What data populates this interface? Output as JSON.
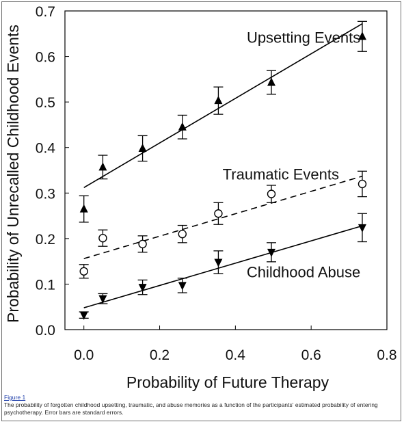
{
  "chart_data": {
    "type": "scatter",
    "xlabel": "Probability of Future Therapy",
    "ylabel": "Probability of Unrecalled Childhood Events",
    "xlim": [
      -0.05,
      0.8
    ],
    "ylim": [
      0.0,
      0.7
    ],
    "xticks": [
      "0.0",
      "0.2",
      "0.4",
      "0.6",
      "0.8"
    ],
    "xtick_values": [
      0.0,
      0.2,
      0.4,
      0.6,
      0.8
    ],
    "yticks": [
      "0.0",
      "0.1",
      "0.2",
      "0.3",
      "0.4",
      "0.5",
      "0.6",
      "0.7"
    ],
    "ytick_values": [
      0.0,
      0.1,
      0.2,
      0.3,
      0.4,
      0.5,
      0.6,
      0.7
    ],
    "series": [
      {
        "name": "Upsetting Events",
        "marker": "triangle-up",
        "line_style": "solid",
        "x": [
          0.0,
          0.05,
          0.155,
          0.26,
          0.355,
          0.495,
          0.735
        ],
        "y": [
          0.265,
          0.357,
          0.398,
          0.445,
          0.503,
          0.543,
          0.644
        ],
        "err": [
          0.029,
          0.026,
          0.028,
          0.026,
          0.03,
          0.026,
          0.033
        ],
        "fit": {
          "x": [
            0.0,
            0.735
          ],
          "y": [
            0.312,
            0.672
          ]
        }
      },
      {
        "name": "Traumatic Events",
        "marker": "circle-open",
        "line_style": "dashed",
        "x": [
          0.0,
          0.05,
          0.155,
          0.26,
          0.355,
          0.495,
          0.735
        ],
        "y": [
          0.128,
          0.201,
          0.188,
          0.21,
          0.255,
          0.298,
          0.32
        ],
        "err": [
          0.015,
          0.018,
          0.018,
          0.019,
          0.024,
          0.019,
          0.028
        ],
        "fit": {
          "x": [
            0.0,
            0.735
          ],
          "y": [
            0.156,
            0.337
          ]
        }
      },
      {
        "name": "Childhood Abuse",
        "marker": "triangle-down",
        "line_style": "solid",
        "x": [
          0.0,
          0.05,
          0.155,
          0.26,
          0.355,
          0.495,
          0.735
        ],
        "y": [
          0.032,
          0.068,
          0.093,
          0.097,
          0.148,
          0.17,
          0.224
        ],
        "err": [
          0.007,
          0.011,
          0.016,
          0.016,
          0.025,
          0.021,
          0.031
        ],
        "fit": {
          "x": [
            0.0,
            0.735
          ],
          "y": [
            0.048,
            0.228
          ]
        }
      }
    ]
  },
  "caption": {
    "label": "Figure 1",
    "text": "The probability of forgotten childhood upsetting, traumatic, and abuse memories as a function of the participants' estimated probability of entering psychotherapy. Error bars are standard errors."
  }
}
